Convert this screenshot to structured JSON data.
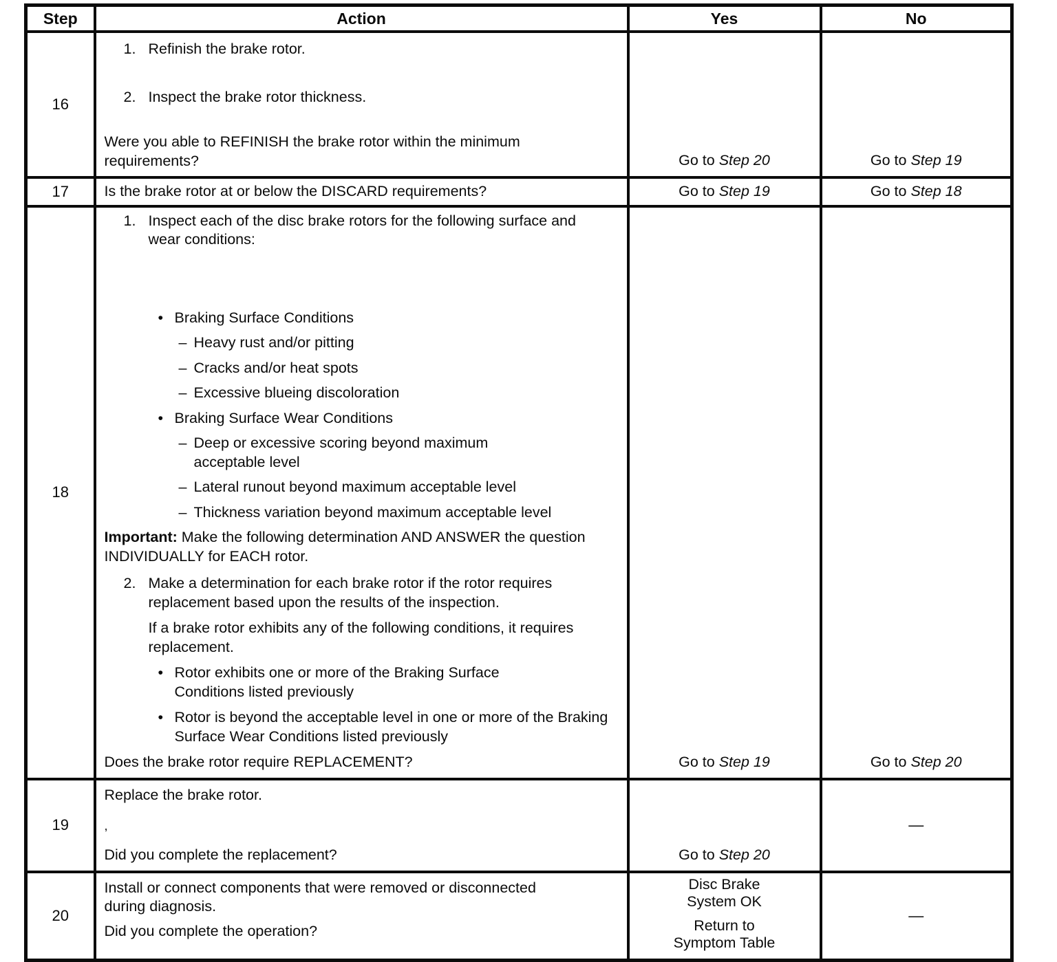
{
  "colors": {
    "ink": "#0b0b0b",
    "paper": "#ffffff"
  },
  "markers": {
    "bullet": "•",
    "dash": "–"
  },
  "header": {
    "step": "Step",
    "action": "Action",
    "yes": "Yes",
    "no": "No"
  },
  "rows": {
    "r16": {
      "step": "16",
      "items": [
        {
          "num": "1.",
          "text": "Refinish the brake rotor."
        },
        {
          "num": "2.",
          "text": "Inspect the brake rotor thickness."
        }
      ],
      "question": "Were you able to REFINISH the brake rotor within the minimum requirements?",
      "yes": {
        "prefix": "Go to ",
        "target": "Step 20"
      },
      "no": {
        "prefix": "Go to ",
        "target": "Step 19"
      }
    },
    "r17": {
      "step": "17",
      "question": "Is the brake rotor at or below the DISCARD requirements?",
      "yes": {
        "prefix": "Go to ",
        "target": "Step 19"
      },
      "no": {
        "prefix": "Go to ",
        "target": "Step 18"
      }
    },
    "r18": {
      "step": "18",
      "item1": {
        "num": "1.",
        "text": "Inspect each of the disc brake rotors for the following surface and wear conditions:"
      },
      "bullets1_title": "Braking Surface Conditions",
      "bullets1": [
        "Heavy rust and/or pitting",
        "Cracks and/or heat spots",
        "Excessive blueing discoloration"
      ],
      "bullets2_title": "Braking Surface Wear Conditions",
      "bullets2": [
        "Deep or excessive scoring beyond maximum acceptable level",
        "Lateral runout beyond maximum acceptable level",
        "Thickness variation beyond maximum acceptable level"
      ],
      "important_label": "Important:",
      "important_text": " Make the following determination AND ANSWER the question INDIVIDUALLY for EACH rotor.",
      "item2": {
        "num": "2.",
        "text": "Make a determination for each brake rotor if the rotor requires replacement based upon the results of the inspection."
      },
      "para": "If a brake rotor exhibits any of the following conditions, it requires replacement.",
      "bullets3": [
        "Rotor exhibits one or more of the Braking Surface Conditions listed previously",
        "Rotor is beyond the acceptable level in one or more of the Braking Surface Wear Conditions listed previously"
      ],
      "question": "Does the brake rotor require REPLACEMENT?",
      "yes": {
        "prefix": "Go to ",
        "target": "Step 19"
      },
      "no": {
        "prefix": "Go to ",
        "target": "Step 20"
      }
    },
    "r19": {
      "step": "19",
      "action_line1": "Replace the brake rotor.",
      "stray_mark": ",",
      "question": "Did you complete the replacement?",
      "yes": {
        "prefix": "Go to ",
        "target": "Step 20"
      },
      "no_dash": "—"
    },
    "r20": {
      "step": "20",
      "action_line1": "Install or connect components that were removed or disconnected during diagnosis.",
      "question": "Did you complete the operation?",
      "yes_block1": [
        "Disc Brake",
        "System OK"
      ],
      "yes_block2": [
        "Return to",
        "Symptom Table"
      ],
      "no_dash": "—"
    }
  }
}
